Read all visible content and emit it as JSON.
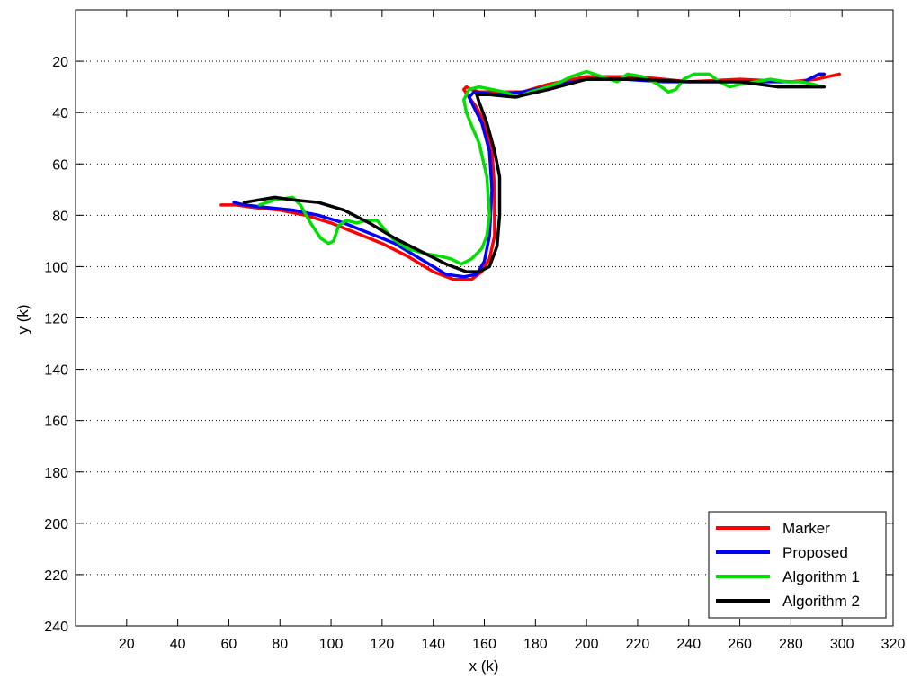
{
  "chart_data": {
    "type": "line",
    "title": "",
    "xlabel": "x (k)",
    "ylabel": "y (k)",
    "xlim": [
      0,
      320
    ],
    "ylim": [
      0,
      240
    ],
    "y_reversed": true,
    "xticks": [
      20,
      40,
      60,
      80,
      100,
      120,
      140,
      160,
      180,
      200,
      220,
      240,
      260,
      280,
      300,
      320
    ],
    "yticks": [
      20,
      40,
      60,
      80,
      100,
      120,
      140,
      160,
      180,
      200,
      220,
      240
    ],
    "grid": "horizontal dotted",
    "legend_position": "bottom-right",
    "series": [
      {
        "name": "Marker",
        "color": "#ff0000",
        "points": [
          [
            57,
            76
          ],
          [
            63,
            76
          ],
          [
            70,
            77
          ],
          [
            80,
            78
          ],
          [
            90,
            80
          ],
          [
            100,
            83
          ],
          [
            110,
            87
          ],
          [
            120,
            91
          ],
          [
            130,
            96
          ],
          [
            140,
            102
          ],
          [
            148,
            105
          ],
          [
            155,
            105
          ],
          [
            159,
            102
          ],
          [
            162,
            97
          ],
          [
            164,
            88
          ],
          [
            164,
            70
          ],
          [
            163,
            55
          ],
          [
            160,
            44
          ],
          [
            157,
            38
          ],
          [
            154,
            34
          ],
          [
            152,
            31
          ],
          [
            153,
            30
          ],
          [
            155,
            31
          ],
          [
            158,
            32
          ],
          [
            165,
            32
          ],
          [
            175,
            32
          ],
          [
            185,
            29
          ],
          [
            200,
            26
          ],
          [
            220,
            26
          ],
          [
            240,
            28
          ],
          [
            260,
            27
          ],
          [
            280,
            28
          ],
          [
            290,
            27
          ],
          [
            299,
            25
          ]
        ]
      },
      {
        "name": "Proposed",
        "color": "#0000ff",
        "points": [
          [
            62,
            75
          ],
          [
            66,
            76
          ],
          [
            75,
            77
          ],
          [
            85,
            78
          ],
          [
            95,
            80
          ],
          [
            105,
            83
          ],
          [
            115,
            87
          ],
          [
            125,
            91
          ],
          [
            135,
            97
          ],
          [
            145,
            103
          ],
          [
            152,
            104
          ],
          [
            157,
            103
          ],
          [
            160,
            98
          ],
          [
            162,
            88
          ],
          [
            163,
            70
          ],
          [
            162,
            55
          ],
          [
            159,
            44
          ],
          [
            156,
            38
          ],
          [
            154,
            34
          ],
          [
            156,
            32
          ],
          [
            165,
            33
          ],
          [
            175,
            32
          ],
          [
            185,
            30
          ],
          [
            200,
            27
          ],
          [
            215,
            27
          ],
          [
            230,
            28
          ],
          [
            250,
            28
          ],
          [
            270,
            28
          ],
          [
            285,
            28
          ],
          [
            291,
            25
          ],
          [
            293,
            25
          ]
        ]
      },
      {
        "name": "Algorithm 1",
        "color": "#00e000",
        "points": [
          [
            72,
            76
          ],
          [
            78,
            74
          ],
          [
            85,
            73
          ],
          [
            88,
            76
          ],
          [
            92,
            83
          ],
          [
            96,
            89
          ],
          [
            99,
            91
          ],
          [
            101,
            90
          ],
          [
            103,
            84
          ],
          [
            106,
            82
          ],
          [
            110,
            83
          ],
          [
            114,
            82
          ],
          [
            118,
            82
          ],
          [
            124,
            89
          ],
          [
            130,
            93
          ],
          [
            137,
            95
          ],
          [
            143,
            96
          ],
          [
            147,
            97
          ],
          [
            151,
            99
          ],
          [
            155,
            97
          ],
          [
            159,
            93
          ],
          [
            161,
            88
          ],
          [
            162,
            80
          ],
          [
            161,
            65
          ],
          [
            158,
            52
          ],
          [
            155,
            45
          ],
          [
            153,
            40
          ],
          [
            152,
            35
          ],
          [
            154,
            31
          ],
          [
            158,
            30
          ],
          [
            163,
            31
          ],
          [
            168,
            32
          ],
          [
            173,
            34
          ],
          [
            178,
            32
          ],
          [
            185,
            30
          ],
          [
            190,
            28
          ],
          [
            194,
            26
          ],
          [
            200,
            24
          ],
          [
            206,
            26
          ],
          [
            212,
            28
          ],
          [
            216,
            25
          ],
          [
            222,
            26
          ],
          [
            228,
            29
          ],
          [
            232,
            32
          ],
          [
            235,
            31
          ],
          [
            238,
            27
          ],
          [
            242,
            25
          ],
          [
            248,
            25
          ],
          [
            252,
            28
          ],
          [
            256,
            30
          ],
          [
            260,
            29
          ],
          [
            266,
            28
          ],
          [
            272,
            27
          ],
          [
            278,
            28
          ],
          [
            284,
            28
          ],
          [
            289,
            29
          ],
          [
            292,
            30
          ]
        ]
      },
      {
        "name": "Algorithm 2",
        "color": "#000000",
        "points": [
          [
            66,
            75
          ],
          [
            72,
            74
          ],
          [
            78,
            73
          ],
          [
            85,
            74
          ],
          [
            95,
            75
          ],
          [
            105,
            78
          ],
          [
            115,
            83
          ],
          [
            125,
            89
          ],
          [
            135,
            94
          ],
          [
            145,
            99
          ],
          [
            153,
            102
          ],
          [
            158,
            102
          ],
          [
            162,
            100
          ],
          [
            165,
            92
          ],
          [
            166,
            80
          ],
          [
            166,
            65
          ],
          [
            164,
            55
          ],
          [
            161,
            44
          ],
          [
            158,
            36
          ],
          [
            157,
            33
          ],
          [
            162,
            33
          ],
          [
            172,
            34
          ],
          [
            185,
            31
          ],
          [
            200,
            27
          ],
          [
            220,
            27
          ],
          [
            240,
            28
          ],
          [
            260,
            28
          ],
          [
            275,
            30
          ],
          [
            285,
            30
          ],
          [
            293,
            30
          ]
        ]
      }
    ]
  }
}
